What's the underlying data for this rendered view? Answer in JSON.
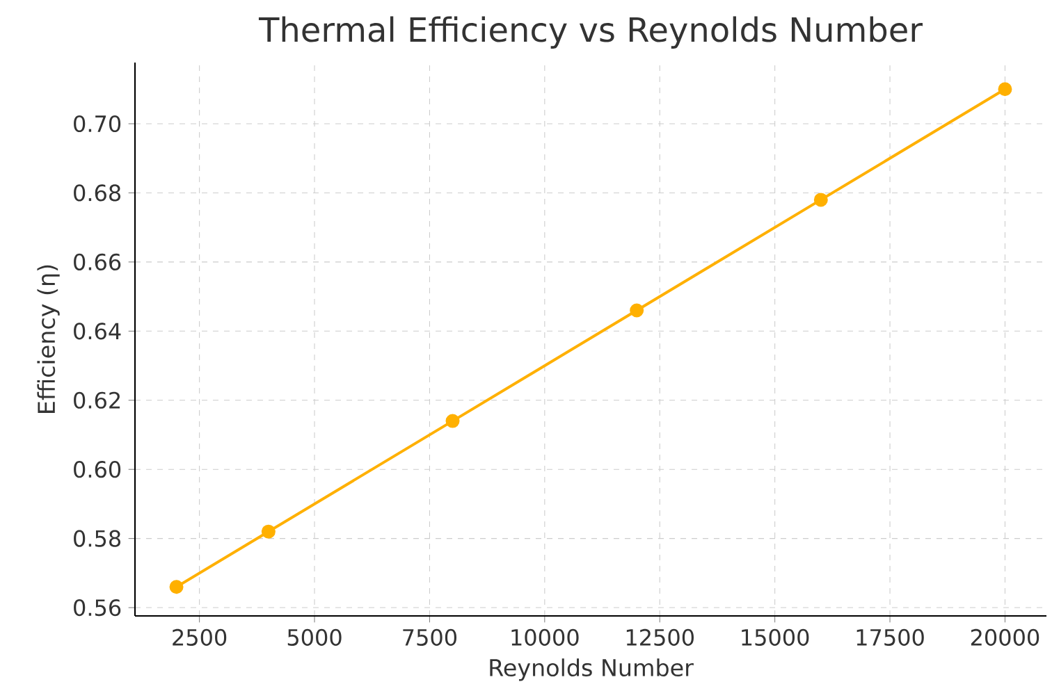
{
  "chart_data": {
    "type": "line",
    "title": "Thermal Efficiency vs Reynolds Number",
    "xlabel": "Reynolds Number",
    "ylabel": "Efficiency (η)",
    "x": [
      2000,
      4000,
      8000,
      12000,
      16000,
      20000
    ],
    "series": [
      {
        "color": "#ffb000",
        "values": [
          0.566,
          0.582,
          0.614,
          0.646,
          0.678,
          0.71
        ]
      }
    ],
    "xlim": [
      1100,
      20900
    ],
    "ylim": [
      0.5576,
      0.7177
    ],
    "xticks": [
      2500,
      5000,
      7500,
      10000,
      12500,
      15000,
      17500,
      20000
    ],
    "yticks": [
      {
        "value": 0.56,
        "label": "0.56"
      },
      {
        "value": 0.58,
        "label": "0.58"
      },
      {
        "value": 0.6,
        "label": "0.60"
      },
      {
        "value": 0.62,
        "label": "0.62"
      },
      {
        "value": 0.64,
        "label": "0.64"
      },
      {
        "value": 0.66,
        "label": "0.66"
      },
      {
        "value": 0.68,
        "label": "0.68"
      },
      {
        "value": 0.7,
        "label": "0.70"
      }
    ],
    "grid": true,
    "marker": "circle",
    "line_style": "solid"
  }
}
